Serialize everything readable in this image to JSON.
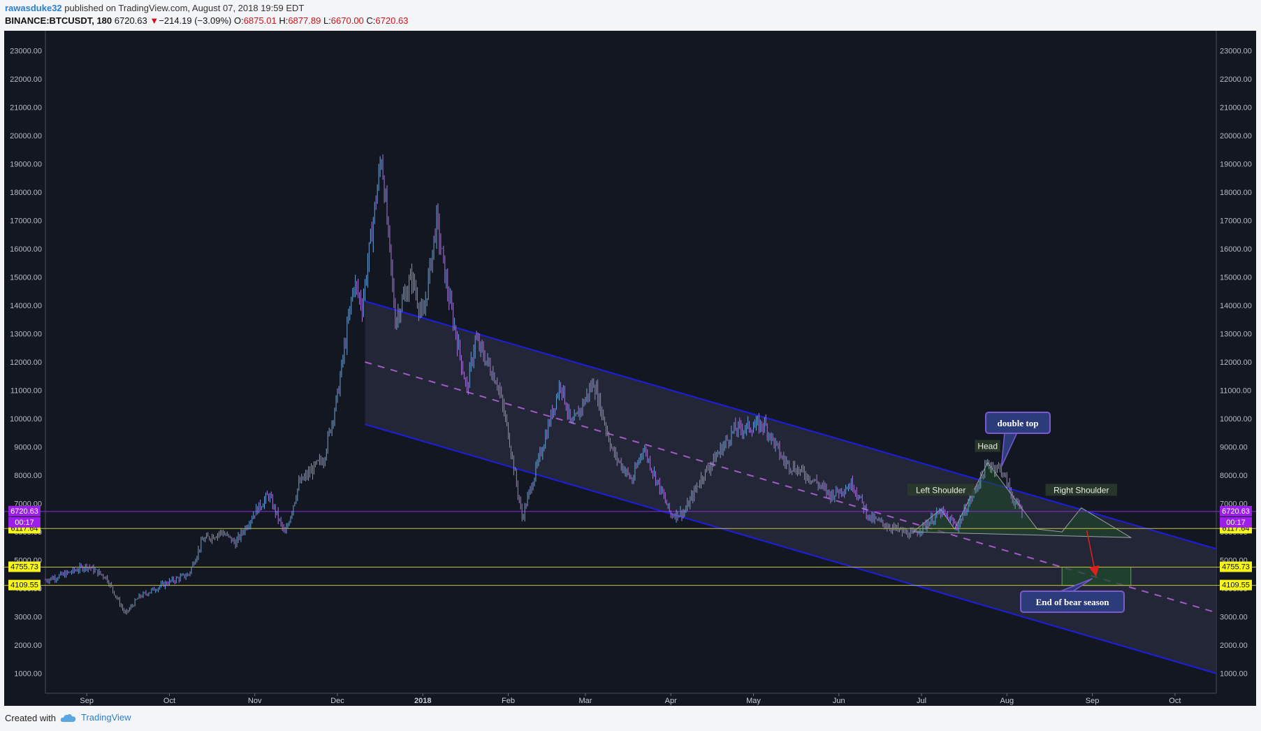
{
  "header": {
    "author": "rawasduke32",
    "published": "published on TradingView.com, August 07, 2018 19:59 EDT",
    "symbol": "BINANCE:BTCUSDT, 180",
    "last": "6720.63",
    "change_arrow": "▼",
    "change": "−214.19 (−3.09%)",
    "o_label": "O:",
    "o_value": "6875.01",
    "h_label": "H:",
    "h_value": "6877.89",
    "l_label": "L:",
    "l_value": "6670.00",
    "c_label": "C:",
    "c_value": "6720.63"
  },
  "footer": {
    "created_with": "Created with",
    "brand": "TradingView",
    "brand_icon": "tradingview-cloud-icon"
  },
  "colors": {
    "background": "#131722",
    "candle_up": "#6ba3d6",
    "candle_down": "#a678d6",
    "channel_line": "#1d1de0",
    "channel_fill": "#2a2c3e",
    "midline": "#a45ac8",
    "horizontal_line": "#c7c23a",
    "price_line": "#8a2be2",
    "pattern_fill": "#1f4a2c",
    "callout": "#2c3b7a",
    "callout_border": "#7b5ad0",
    "arrow": "#e02020"
  },
  "chart_data": {
    "type": "candlestick",
    "interval": "180",
    "y_ticks": [
      "1000.00",
      "2000.00",
      "3000.00",
      "4000.00",
      "5000.00",
      "6000.00",
      "7000.00",
      "8000.00",
      "9000.00",
      "10000.00",
      "11000.00",
      "12000.00",
      "13000.00",
      "14000.00",
      "15000.00",
      "16000.00",
      "17000.00",
      "18000.00",
      "19000.00",
      "20000.00",
      "21000.00",
      "22000.00",
      "23000.00"
    ],
    "ylim": [
      300,
      23700
    ],
    "x_ticks": [
      {
        "label": "Sep",
        "date": "2017-09-01",
        "bold": false
      },
      {
        "label": "Oct",
        "date": "2017-10-01",
        "bold": false
      },
      {
        "label": "Nov",
        "date": "2017-11-01",
        "bold": false
      },
      {
        "label": "Dec",
        "date": "2017-12-01",
        "bold": false
      },
      {
        "label": "2018",
        "date": "2018-01-01",
        "bold": true
      },
      {
        "label": "Feb",
        "date": "2018-02-01",
        "bold": false
      },
      {
        "label": "Mar",
        "date": "2018-03-01",
        "bold": false
      },
      {
        "label": "Apr",
        "date": "2018-04-01",
        "bold": false
      },
      {
        "label": "May",
        "date": "2018-05-01",
        "bold": false
      },
      {
        "label": "Jun",
        "date": "2018-06-01",
        "bold": false
      },
      {
        "label": "Jul",
        "date": "2018-07-01",
        "bold": false
      },
      {
        "label": "Aug",
        "date": "2018-08-01",
        "bold": false
      },
      {
        "label": "Sep",
        "date": "2018-09-01",
        "bold": false
      },
      {
        "label": "Oct",
        "date": "2018-10-01",
        "bold": false
      }
    ],
    "xlim": [
      "2017-08-17",
      "2018-10-16"
    ],
    "price_path": [
      [
        "2017-08-17",
        4300
      ],
      [
        "2017-08-24",
        4500
      ],
      [
        "2017-09-01",
        4800
      ],
      [
        "2017-09-08",
        4400
      ],
      [
        "2017-09-15",
        3100
      ],
      [
        "2017-09-20",
        3700
      ],
      [
        "2017-09-30",
        4200
      ],
      [
        "2017-10-08",
        4500
      ],
      [
        "2017-10-13",
        5700
      ],
      [
        "2017-10-20",
        6000
      ],
      [
        "2017-10-25",
        5600
      ],
      [
        "2017-11-01",
        6700
      ],
      [
        "2017-11-06",
        7300
      ],
      [
        "2017-11-12",
        5900
      ],
      [
        "2017-11-17",
        7700
      ],
      [
        "2017-11-26",
        8600
      ],
      [
        "2017-12-01",
        10800
      ],
      [
        "2017-12-07",
        14800
      ],
      [
        "2017-12-10",
        14000
      ],
      [
        "2017-12-17",
        19300
      ],
      [
        "2017-12-22",
        13500
      ],
      [
        "2017-12-28",
        15000
      ],
      [
        "2018-01-01",
        13500
      ],
      [
        "2018-01-06",
        17000
      ],
      [
        "2018-01-10",
        14500
      ],
      [
        "2018-01-17",
        11000
      ],
      [
        "2018-01-20",
        12800
      ],
      [
        "2018-01-28",
        11300
      ],
      [
        "2018-02-01",
        9500
      ],
      [
        "2018-02-06",
        6500
      ],
      [
        "2018-02-12",
        8500
      ],
      [
        "2018-02-20",
        11300
      ],
      [
        "2018-02-24",
        9700
      ],
      [
        "2018-03-04",
        11300
      ],
      [
        "2018-03-11",
        8800
      ],
      [
        "2018-03-18",
        7800
      ],
      [
        "2018-03-22",
        9000
      ],
      [
        "2018-04-01",
        6600
      ],
      [
        "2018-04-06",
        6700
      ],
      [
        "2018-04-12",
        7900
      ],
      [
        "2018-04-24",
        9600
      ],
      [
        "2018-05-05",
        9800
      ],
      [
        "2018-05-12",
        8500
      ],
      [
        "2018-05-22",
        7900
      ],
      [
        "2018-05-29",
        7300
      ],
      [
        "2018-06-06",
        7700
      ],
      [
        "2018-06-12",
        6500
      ],
      [
        "2018-06-24",
        6000
      ],
      [
        "2018-06-28",
        5900
      ],
      [
        "2018-07-08",
        6700
      ],
      [
        "2018-07-14",
        6200
      ],
      [
        "2018-07-20",
        7400
      ],
      [
        "2018-07-25",
        8400
      ],
      [
        "2018-07-30",
        8200
      ],
      [
        "2018-08-04",
        7000
      ],
      [
        "2018-08-07",
        6720
      ]
    ],
    "channel": {
      "upper": [
        [
          "2017-12-11",
          14150
        ],
        [
          "2018-10-16",
          5400
        ]
      ],
      "lower": [
        [
          "2017-12-11",
          9800
        ],
        [
          "2018-10-16",
          1000
        ]
      ],
      "mid": [
        [
          "2017-12-11",
          12000
        ],
        [
          "2018-10-16",
          3150
        ]
      ]
    },
    "horizontal_levels": [
      {
        "value": 6117.64,
        "label": "6117.64"
      },
      {
        "value": 4755.73,
        "label": "4755.73"
      },
      {
        "value": 4109.55,
        "label": "4109.55"
      }
    ],
    "last_price": {
      "value": 6720.63,
      "label": "6720.63",
      "countdown": "00:17"
    },
    "target_zone": {
      "from": "2018-08-21",
      "to": "2018-09-15",
      "top": 4755.73,
      "bottom": 4109.55
    },
    "head_shoulders": [
      [
        "2018-06-28",
        6000
      ],
      [
        "2018-07-08",
        6800
      ],
      [
        "2018-07-13",
        6100
      ],
      [
        "2018-07-25",
        8450
      ],
      [
        "2018-08-12",
        6100
      ],
      [
        "2018-08-21",
        6000
      ],
      [
        "2018-08-28",
        6850
      ],
      [
        "2018-09-15",
        5800
      ]
    ],
    "projection_arrow": {
      "from": [
        "2018-08-30",
        6050
      ],
      "to": [
        "2018-09-02",
        4600
      ]
    },
    "annotations": [
      {
        "id": "head",
        "text": "Head"
      },
      {
        "id": "left-shoulder",
        "text": "Left Shoulder"
      },
      {
        "id": "right-shoulder",
        "text": "Right Shoulder"
      }
    ],
    "callouts": [
      {
        "id": "double-top",
        "text": "double top"
      },
      {
        "id": "end-bear",
        "text": "End of bear season"
      }
    ]
  }
}
